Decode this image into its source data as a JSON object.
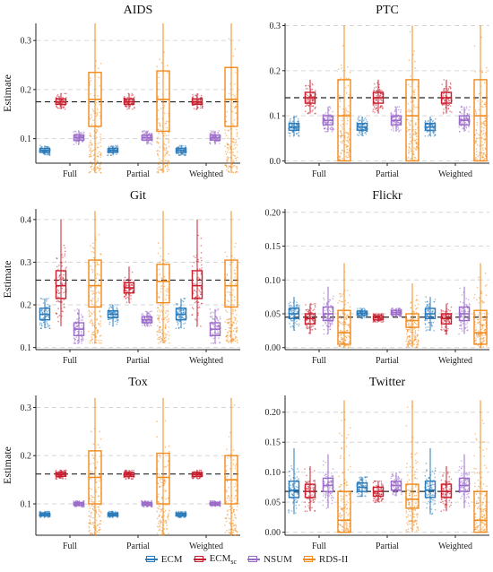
{
  "figure": {
    "ylabel": "Estimate",
    "groups": [
      "Full",
      "Partial",
      "Weighted"
    ],
    "series_names": [
      "ECM",
      "ECM",
      "NSUM",
      "RDS-II"
    ],
    "series_colors": [
      "#2b7bba",
      "#c81e2e",
      "#9b6bc9",
      "#f28a1c"
    ],
    "legend_sub": "sc"
  },
  "chart_data": [
    {
      "type": "box",
      "title": "AIDS",
      "ylabel": "Estimate",
      "ylim": [
        0.05,
        0.335
      ],
      "yticks": [
        0.1,
        0.2,
        0.3
      ],
      "ytick_labels": [
        "0.1",
        "0.2",
        "0.3"
      ],
      "reference_line": 0.175,
      "categories": [
        "Full",
        "Partial",
        "Weighted"
      ],
      "series": [
        {
          "name": "ECM",
          "boxes": [
            [
              0.066,
              0.072,
              0.076,
              0.08,
              0.086
            ],
            [
              0.066,
              0.072,
              0.076,
              0.08,
              0.086
            ],
            [
              0.066,
              0.072,
              0.076,
              0.08,
              0.086
            ]
          ]
        },
        {
          "name": "ECMsc",
          "boxes": [
            [
              0.16,
              0.17,
              0.175,
              0.181,
              0.192
            ],
            [
              0.16,
              0.17,
              0.175,
              0.181,
              0.192
            ],
            [
              0.16,
              0.17,
              0.175,
              0.181,
              0.192
            ]
          ]
        },
        {
          "name": "NSUM",
          "boxes": [
            [
              0.088,
              0.097,
              0.102,
              0.107,
              0.116
            ],
            [
              0.088,
              0.097,
              0.102,
              0.107,
              0.116
            ],
            [
              0.088,
              0.097,
              0.102,
              0.107,
              0.116
            ]
          ]
        },
        {
          "name": "RDS-II",
          "boxes": [
            [
              0.03,
              0.125,
              0.18,
              0.235,
              0.335
            ],
            [
              0.03,
              0.115,
              0.18,
              0.238,
              0.335
            ],
            [
              0.03,
              0.125,
              0.18,
              0.245,
              0.335
            ]
          ]
        }
      ]
    },
    {
      "type": "box",
      "title": "PTC",
      "ylabel": "",
      "ylim": [
        -0.005,
        0.305
      ],
      "yticks": [
        0.0,
        0.1,
        0.2,
        0.3
      ],
      "ytick_labels": [
        "0.0",
        "0.1",
        "0.2",
        "0.3"
      ],
      "reference_line": 0.14,
      "categories": [
        "Full",
        "Partial",
        "Weighted"
      ],
      "series": [
        {
          "name": "ECM",
          "boxes": [
            [
              0.055,
              0.068,
              0.075,
              0.083,
              0.098
            ],
            [
              0.055,
              0.068,
              0.075,
              0.083,
              0.098
            ],
            [
              0.055,
              0.068,
              0.075,
              0.083,
              0.098
            ]
          ]
        },
        {
          "name": "ECMsc",
          "boxes": [
            [
              0.105,
              0.128,
              0.14,
              0.152,
              0.18
            ],
            [
              0.105,
              0.128,
              0.14,
              0.152,
              0.18
            ],
            [
              0.105,
              0.128,
              0.14,
              0.152,
              0.18
            ]
          ]
        },
        {
          "name": "NSUM",
          "boxes": [
            [
              0.065,
              0.08,
              0.09,
              0.1,
              0.12
            ],
            [
              0.065,
              0.08,
              0.09,
              0.1,
              0.12
            ],
            [
              0.065,
              0.08,
              0.09,
              0.1,
              0.12
            ]
          ]
        },
        {
          "name": "RDS-II",
          "boxes": [
            [
              0.0,
              0.0,
              0.1,
              0.18,
              0.3
            ],
            [
              0.0,
              0.0,
              0.1,
              0.18,
              0.3
            ],
            [
              0.0,
              0.0,
              0.1,
              0.18,
              0.3
            ]
          ]
        }
      ]
    },
    {
      "type": "box",
      "title": "Git",
      "ylabel": "Estimate",
      "ylim": [
        0.095,
        0.425
      ],
      "yticks": [
        0.1,
        0.2,
        0.3,
        0.4
      ],
      "ytick_labels": [
        "0.1",
        "0.2",
        "0.3",
        "0.4"
      ],
      "reference_line": 0.258,
      "categories": [
        "Full",
        "Partial",
        "Weighted"
      ],
      "series": [
        {
          "name": "ECM",
          "boxes": [
            [
              0.145,
              0.165,
              0.178,
              0.192,
              0.215
            ],
            [
              0.15,
              0.17,
              0.178,
              0.186,
              0.2
            ],
            [
              0.145,
              0.165,
              0.178,
              0.192,
              0.215
            ]
          ]
        },
        {
          "name": "ECMsc",
          "boxes": [
            [
              0.15,
              0.215,
              0.245,
              0.28,
              0.4
            ],
            [
              0.205,
              0.228,
              0.24,
              0.252,
              0.29
            ],
            [
              0.15,
              0.215,
              0.245,
              0.28,
              0.4
            ]
          ]
        },
        {
          "name": "NSUM",
          "boxes": [
            [
              0.11,
              0.128,
              0.143,
              0.158,
              0.19
            ],
            [
              0.15,
              0.158,
              0.165,
              0.172,
              0.185
            ],
            [
              0.11,
              0.128,
              0.143,
              0.158,
              0.19
            ]
          ]
        },
        {
          "name": "RDS-II",
          "boxes": [
            [
              0.11,
              0.195,
              0.245,
              0.305,
              0.42
            ],
            [
              0.11,
              0.205,
              0.255,
              0.295,
              0.42
            ],
            [
              0.11,
              0.195,
              0.245,
              0.305,
              0.42
            ]
          ]
        }
      ]
    },
    {
      "type": "box",
      "title": "Flickr",
      "ylabel": "",
      "ylim": [
        -0.003,
        0.205
      ],
      "yticks": [
        0.0,
        0.05,
        0.1,
        0.15,
        0.2
      ],
      "ytick_labels": [
        "0.00",
        "0.05",
        "0.10",
        "0.15",
        "0.20"
      ],
      "reference_line": 0.045,
      "categories": [
        "Full",
        "Partial",
        "Weighted"
      ],
      "series": [
        {
          "name": "ECM",
          "boxes": [
            [
              0.025,
              0.043,
              0.05,
              0.058,
              0.075
            ],
            [
              0.042,
              0.048,
              0.051,
              0.054,
              0.058
            ],
            [
              0.025,
              0.043,
              0.05,
              0.058,
              0.075
            ]
          ]
        },
        {
          "name": "ECMsc",
          "boxes": [
            [
              0.02,
              0.035,
              0.043,
              0.05,
              0.065
            ],
            [
              0.038,
              0.041,
              0.044,
              0.047,
              0.05
            ],
            [
              0.02,
              0.035,
              0.043,
              0.05,
              0.065
            ]
          ]
        },
        {
          "name": "NSUM",
          "boxes": [
            [
              0.02,
              0.04,
              0.05,
              0.06,
              0.09
            ],
            [
              0.046,
              0.049,
              0.052,
              0.055,
              0.058
            ],
            [
              0.02,
              0.04,
              0.05,
              0.06,
              0.09
            ]
          ]
        },
        {
          "name": "RDS-II",
          "boxes": [
            [
              0.0,
              0.005,
              0.022,
              0.055,
              0.125
            ],
            [
              0.0,
              0.03,
              0.04,
              0.05,
              0.095
            ],
            [
              0.0,
              0.005,
              0.022,
              0.055,
              0.125
            ]
          ]
        }
      ]
    },
    {
      "type": "box",
      "title": "Tox",
      "ylabel": "Estimate",
      "ylim": [
        0.035,
        0.325
      ],
      "yticks": [
        0.1,
        0.2,
        0.3
      ],
      "ytick_labels": [
        "0.1",
        "0.2",
        "0.3"
      ],
      "reference_line": 0.162,
      "categories": [
        "Full",
        "Partial",
        "Weighted"
      ],
      "series": [
        {
          "name": "ECM",
          "boxes": [
            [
              0.072,
              0.075,
              0.078,
              0.081,
              0.084
            ],
            [
              0.072,
              0.075,
              0.078,
              0.081,
              0.084
            ],
            [
              0.072,
              0.075,
              0.078,
              0.081,
              0.084
            ]
          ]
        },
        {
          "name": "ECMsc",
          "boxes": [
            [
              0.152,
              0.157,
              0.161,
              0.165,
              0.17
            ],
            [
              0.152,
              0.157,
              0.161,
              0.165,
              0.17
            ],
            [
              0.152,
              0.157,
              0.161,
              0.165,
              0.17
            ]
          ]
        },
        {
          "name": "NSUM",
          "boxes": [
            [
              0.094,
              0.097,
              0.1,
              0.103,
              0.106
            ],
            [
              0.094,
              0.097,
              0.1,
              0.103,
              0.106
            ],
            [
              0.094,
              0.097,
              0.1,
              0.103,
              0.106
            ]
          ]
        },
        {
          "name": "RDS-II",
          "boxes": [
            [
              0.035,
              0.1,
              0.155,
              0.21,
              0.32
            ],
            [
              0.035,
              0.1,
              0.155,
              0.205,
              0.32
            ],
            [
              0.035,
              0.1,
              0.15,
              0.2,
              0.32
            ]
          ]
        }
      ]
    },
    {
      "type": "box",
      "title": "Twitter",
      "ylabel": "",
      "ylim": [
        -0.005,
        0.228
      ],
      "yticks": [
        0.0,
        0.05,
        0.1,
        0.15,
        0.2
      ],
      "ytick_labels": [
        "0.00",
        "0.05",
        "0.10",
        "0.15",
        "0.20"
      ],
      "reference_line": 0.068,
      "categories": [
        "Full",
        "Partial",
        "Weighted"
      ],
      "series": [
        {
          "name": "ECM",
          "boxes": [
            [
              0.03,
              0.058,
              0.07,
              0.085,
              0.14
            ],
            [
              0.06,
              0.068,
              0.075,
              0.082,
              0.092
            ],
            [
              0.03,
              0.058,
              0.07,
              0.085,
              0.14
            ]
          ]
        },
        {
          "name": "ECMsc",
          "boxes": [
            [
              0.035,
              0.058,
              0.068,
              0.08,
              0.11
            ],
            [
              0.05,
              0.06,
              0.068,
              0.075,
              0.085
            ],
            [
              0.035,
              0.058,
              0.068,
              0.08,
              0.11
            ]
          ]
        },
        {
          "name": "NSUM",
          "boxes": [
            [
              0.04,
              0.068,
              0.078,
              0.09,
              0.13
            ],
            [
              0.06,
              0.07,
              0.078,
              0.085,
              0.1
            ],
            [
              0.04,
              0.068,
              0.078,
              0.09,
              0.13
            ]
          ]
        },
        {
          "name": "RDS-II",
          "boxes": [
            [
              0.0,
              0.0,
              0.02,
              0.068,
              0.22
            ],
            [
              0.0,
              0.04,
              0.055,
              0.08,
              0.22
            ],
            [
              0.0,
              0.0,
              0.02,
              0.068,
              0.22
            ]
          ]
        }
      ]
    }
  ]
}
